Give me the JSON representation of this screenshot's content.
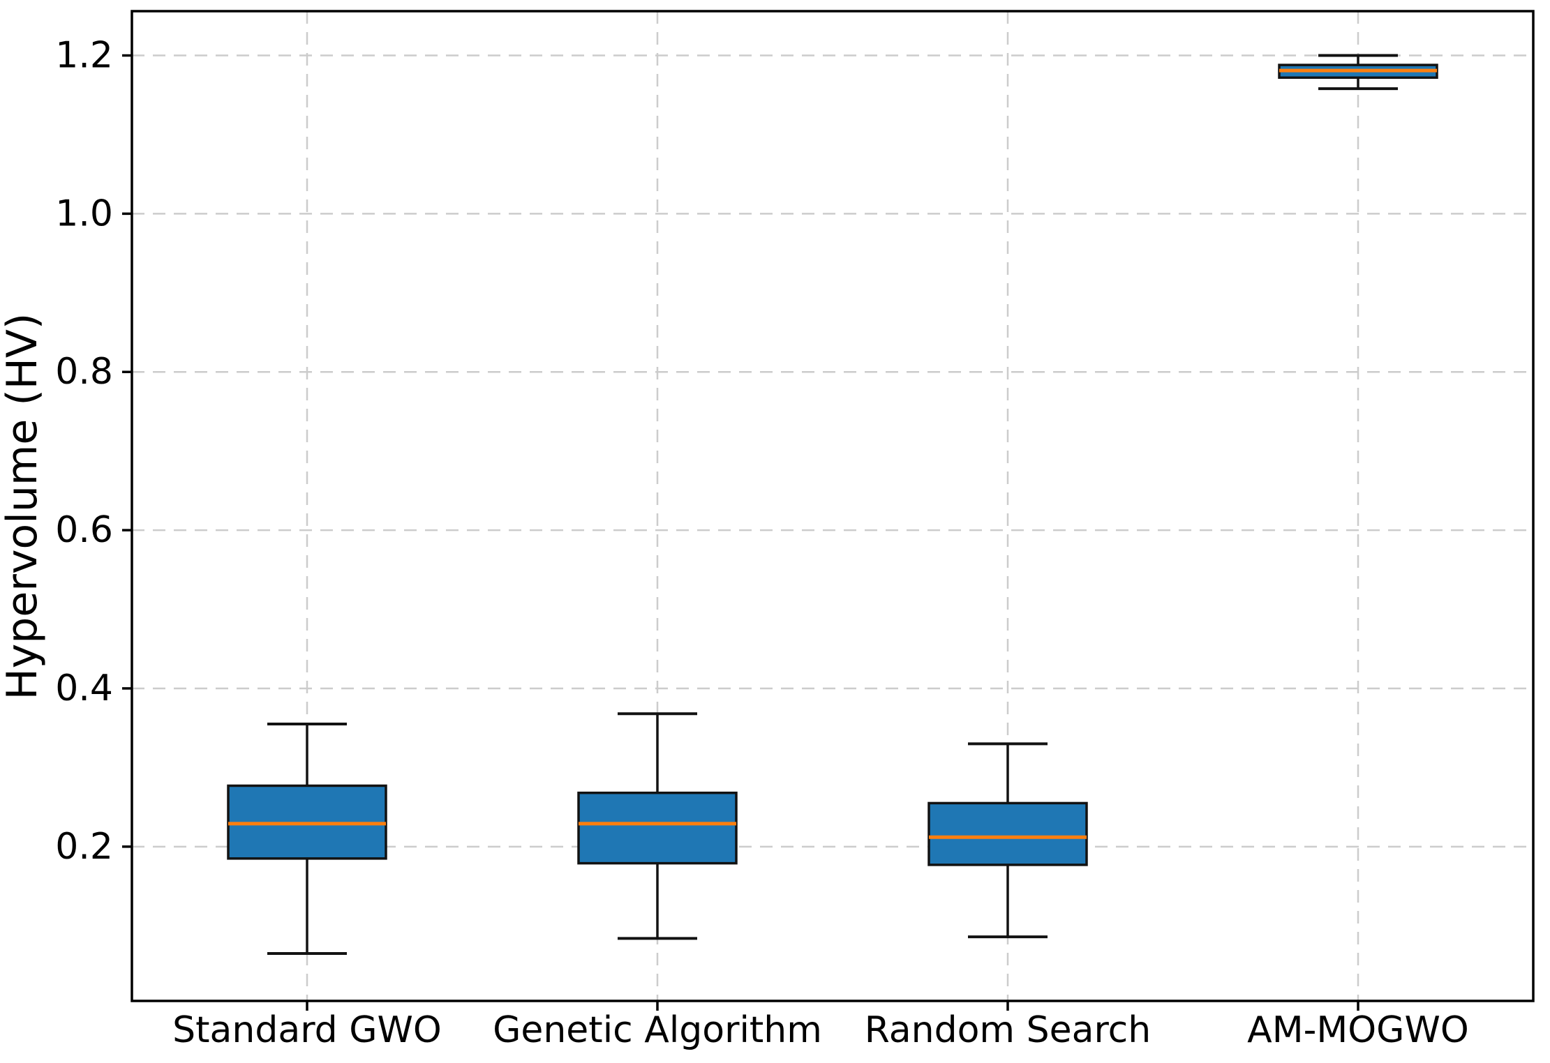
{
  "figure": {
    "background": "#ffffff"
  },
  "chart_data": {
    "type": "boxplot",
    "title": "",
    "xlabel": "",
    "ylabel": "Hypervolume (HV)",
    "categories": [
      "Standard GWO",
      "Genetic Algorithm",
      "Random Search",
      "AM-MOGWO"
    ],
    "yticks": [
      0.2,
      0.4,
      0.6,
      0.8,
      1.0,
      1.2
    ],
    "ytick_labels": [
      "0.2",
      "0.4",
      "0.6",
      "0.8",
      "1.0",
      "1.2"
    ],
    "ylim": [
      0.005,
      1.256
    ],
    "grid": {
      "horizontal": true,
      "vertical": true,
      "line_style": "dashed"
    },
    "legend": null,
    "series": [
      {
        "name": "Standard GWO",
        "whisker_low": 0.065,
        "q1": 0.185,
        "median": 0.229,
        "q3": 0.277,
        "whisker_high": 0.355
      },
      {
        "name": "Genetic Algorithm",
        "whisker_low": 0.084,
        "q1": 0.179,
        "median": 0.229,
        "q3": 0.268,
        "whisker_high": 0.368
      },
      {
        "name": "Random Search",
        "whisker_low": 0.086,
        "q1": 0.177,
        "median": 0.212,
        "q3": 0.255,
        "whisker_high": 0.33
      },
      {
        "name": "AM-MOGWO",
        "whisker_low": 1.158,
        "q1": 1.172,
        "median": 1.181,
        "q3": 1.188,
        "whisker_high": 1.2
      }
    ],
    "colors": {
      "box_fill": "#1f77b4",
      "box_edge": "#121212",
      "median": "#ff7f0e",
      "whisker": "#121212",
      "grid": "#cccccc",
      "spine": "#000000",
      "text": "#000000"
    }
  }
}
